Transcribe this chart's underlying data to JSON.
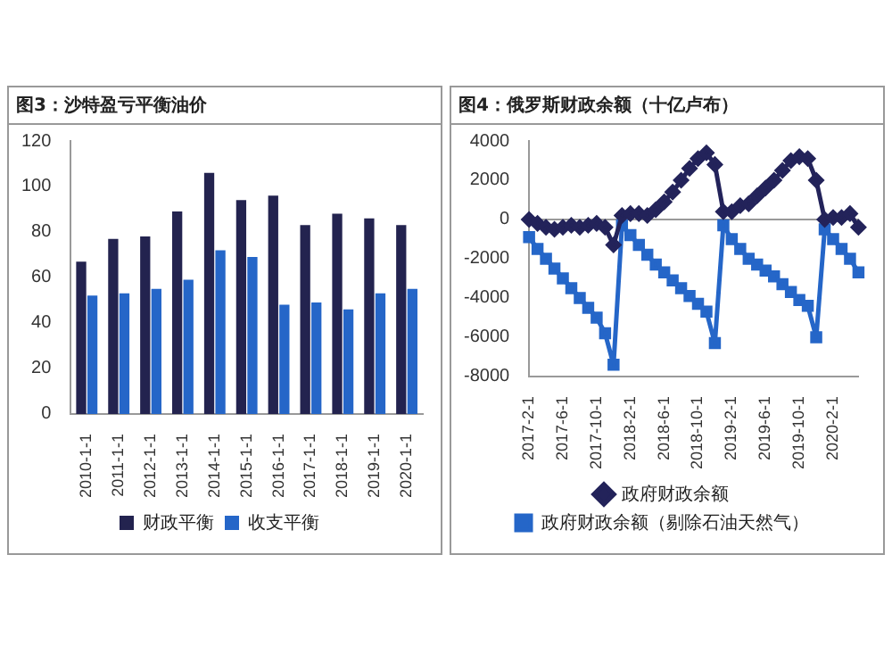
{
  "chart_data": [
    {
      "type": "bar",
      "title": "图3：沙特盈亏平衡油价",
      "categories": [
        "2010-1-1",
        "2011-1-1",
        "2012-1-1",
        "2013-1-1",
        "2014-1-1",
        "2015-1-1",
        "2016-1-1",
        "2017-1-1",
        "2018-1-1",
        "2019-1-1",
        "2020-1-1"
      ],
      "series": [
        {
          "name": "财政平衡",
          "color": "#23234f",
          "values": [
            67,
            77,
            78,
            89,
            106,
            94,
            96,
            83,
            88,
            86,
            83
          ]
        },
        {
          "name": "收支平衡",
          "color": "#2566c8",
          "values": [
            52,
            53,
            55,
            59,
            72,
            69,
            48,
            49,
            46,
            53,
            55
          ]
        }
      ],
      "ylim": [
        0,
        120
      ],
      "yticks": [
        0,
        20,
        40,
        60,
        80,
        100,
        120
      ],
      "grid": false,
      "legend": "bottom"
    },
    {
      "type": "line",
      "title": "图4：俄罗斯财政余额（十亿卢布）",
      "categories": [
        "2017-2-1",
        null,
        null,
        null,
        "2017-6-1",
        null,
        null,
        null,
        "2017-10-1",
        null,
        null,
        null,
        "2018-2-1",
        null,
        null,
        null,
        "2018-6-1",
        null,
        null,
        null,
        "2018-10-1",
        null,
        null,
        null,
        "2019-2-1",
        null,
        null,
        null,
        "2019-6-1",
        null,
        null,
        null,
        "2019-10-1",
        null,
        null,
        null,
        "2020-2-1",
        null,
        null,
        null
      ],
      "series": [
        {
          "name": "政府财政余额",
          "color": "#23235a",
          "marker": "diamond",
          "values": [
            0,
            -200,
            -400,
            -500,
            -400,
            -300,
            -400,
            -300,
            -200,
            -400,
            -1300,
            200,
            300,
            300,
            200,
            500,
            900,
            1400,
            2000,
            2600,
            3100,
            3400,
            2800,
            400,
            400,
            700,
            800,
            1200,
            1600,
            2000,
            2500,
            3000,
            3200,
            3100,
            2000,
            0,
            100,
            100,
            300,
            -400
          ]
        },
        {
          "name": "政府财政余额（剔除石油天然气）",
          "color": "#2566c8",
          "marker": "square",
          "values": [
            -900,
            -1500,
            -2000,
            -2500,
            -3000,
            -3500,
            -4000,
            -4500,
            -5000,
            -5800,
            -7400,
            -300,
            -800,
            -1300,
            -1800,
            -2300,
            -2700,
            -3100,
            -3500,
            -3900,
            -4300,
            -4700,
            -6300,
            -300,
            -1000,
            -1500,
            -2000,
            -2300,
            -2600,
            -2900,
            -3300,
            -3700,
            -4100,
            -4400,
            -6000,
            -500,
            -1000,
            -1500,
            -2000,
            -2700
          ]
        }
      ],
      "ref_lines": [
        {
          "axis": "y",
          "value": 0,
          "color": "#999999"
        }
      ],
      "ylim": [
        -8000,
        4000
      ],
      "yticks": [
        -8000,
        -6000,
        -4000,
        -2000,
        0,
        2000,
        4000
      ],
      "grid": false,
      "legend": "bottom"
    }
  ]
}
